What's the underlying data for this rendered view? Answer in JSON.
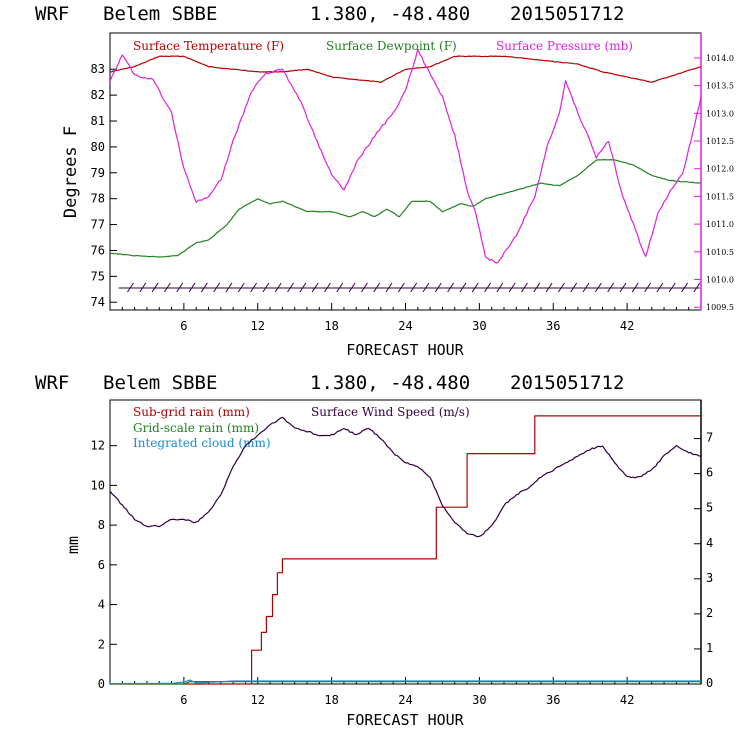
{
  "header": {
    "top": {
      "model": "WRF",
      "station": "Belem SBBE",
      "coords": "1.380, -48.480",
      "run": "2015051712"
    },
    "bottom": {
      "model": "WRF",
      "station": "Belem SBBE",
      "coords": "1.380, -48.480",
      "run": "2015051712"
    }
  },
  "colors": {
    "temperature": "#b30000",
    "dewpoint": "#208020",
    "pressure": "#e020e0",
    "subgrid": "#b30000",
    "gridscale": "#208020",
    "cloud": "#1a8ad0",
    "wind": "#300040",
    "pressure_axis": "#e020e0"
  },
  "chart_data": [
    {
      "type": "line",
      "xlabel": "FORECAST HOUR",
      "ylabel": "Degrees F",
      "xlim": [
        0,
        48
      ],
      "ylim": [
        73.7,
        84.4
      ],
      "y2lim": [
        1009.45,
        1014.45
      ],
      "grid": false,
      "legend_position": "top",
      "x_ticks": [
        "6",
        "12",
        "18",
        "24",
        "30",
        "36",
        "42"
      ],
      "y_ticks": [
        "74",
        "75",
        "76",
        "77",
        "78",
        "79",
        "80",
        "81",
        "82",
        "83"
      ],
      "y2_ticks": [
        "1009.5",
        "1010.0",
        "1010.5",
        "1011.0",
        "1011.5",
        "1012.0",
        "1012.5",
        "1013.0",
        "1013.5",
        "1014.0"
      ],
      "series": [
        {
          "name": "Surface Temperature (F)",
          "axis": "left",
          "points": [
            [
              0,
              82.9
            ],
            [
              2,
              83.1
            ],
            [
              4,
              83.5
            ],
            [
              6,
              83.5
            ],
            [
              8,
              83.1
            ],
            [
              10,
              83.0
            ],
            [
              12,
              82.9
            ],
            [
              14,
              82.9
            ],
            [
              16,
              83.0
            ],
            [
              18,
              82.7
            ],
            [
              20,
              82.6
            ],
            [
              22,
              82.5
            ],
            [
              24,
              83.0
            ],
            [
              26,
              83.1
            ],
            [
              28,
              83.5
            ],
            [
              30,
              83.5
            ],
            [
              32,
              83.5
            ],
            [
              34,
              83.4
            ],
            [
              36,
              83.3
            ],
            [
              38,
              83.2
            ],
            [
              40,
              82.9
            ],
            [
              42,
              82.7
            ],
            [
              44,
              82.5
            ],
            [
              46,
              82.8
            ],
            [
              48,
              83.1
            ]
          ]
        },
        {
          "name": "Surface Dewpoint (F)",
          "axis": "left",
          "points": [
            [
              0,
              75.9
            ],
            [
              2,
              75.8
            ],
            [
              4,
              75.75
            ],
            [
              5.5,
              75.8
            ],
            [
              7,
              76.3
            ],
            [
              8,
              76.4
            ],
            [
              9.5,
              77.0
            ],
            [
              10.5,
              77.6
            ],
            [
              12,
              78.0
            ],
            [
              13,
              77.8
            ],
            [
              14,
              77.9
            ],
            [
              16,
              77.5
            ],
            [
              18,
              77.5
            ],
            [
              19.5,
              77.3
            ],
            [
              20.5,
              77.5
            ],
            [
              21.5,
              77.3
            ],
            [
              22.5,
              77.6
            ],
            [
              23.5,
              77.3
            ],
            [
              24.5,
              77.9
            ],
            [
              26,
              77.9
            ],
            [
              27,
              77.5
            ],
            [
              28.5,
              77.8
            ],
            [
              29.5,
              77.7
            ],
            [
              30.5,
              78.0
            ],
            [
              32,
              78.2
            ],
            [
              33.5,
              78.4
            ],
            [
              35,
              78.6
            ],
            [
              36.5,
              78.5
            ],
            [
              38,
              78.9
            ],
            [
              39.5,
              79.5
            ],
            [
              41,
              79.5
            ],
            [
              42.5,
              79.3
            ],
            [
              44,
              78.9
            ],
            [
              45.5,
              78.7
            ],
            [
              48,
              78.6
            ]
          ]
        },
        {
          "name": "Surface Pressure (mb)",
          "axis": "right",
          "points": [
            [
              0,
              1013.6
            ],
            [
              1,
              1014.05
            ],
            [
              2,
              1013.7
            ],
            [
              3.5,
              1013.6
            ],
            [
              5,
              1013.0
            ],
            [
              6,
              1012.0
            ],
            [
              7,
              1011.4
            ],
            [
              8,
              1011.5
            ],
            [
              9,
              1011.8
            ],
            [
              10,
              1012.5
            ],
            [
              11.5,
              1013.4
            ],
            [
              12.5,
              1013.7
            ],
            [
              14,
              1013.8
            ],
            [
              15.5,
              1013.2
            ],
            [
              17,
              1012.4
            ],
            [
              18,
              1011.9
            ],
            [
              19,
              1011.6
            ],
            [
              20,
              1012.1
            ],
            [
              21.5,
              1012.6
            ],
            [
              23,
              1013.0
            ],
            [
              24,
              1013.4
            ],
            [
              25,
              1014.15
            ],
            [
              26,
              1013.7
            ],
            [
              27,
              1013.3
            ],
            [
              28,
              1012.6
            ],
            [
              29,
              1011.6
            ],
            [
              29.7,
              1011.2
            ],
            [
              30.5,
              1010.4
            ],
            [
              31.5,
              1010.3
            ],
            [
              33,
              1010.8
            ],
            [
              34.5,
              1011.5
            ],
            [
              35.5,
              1012.4
            ],
            [
              36.5,
              1013.0
            ],
            [
              37,
              1013.6
            ],
            [
              38,
              1013.0
            ],
            [
              38.8,
              1012.6
            ],
            [
              39.5,
              1012.2
            ],
            [
              40.5,
              1012.5
            ],
            [
              41.5,
              1011.6
            ],
            [
              42.5,
              1011.0
            ],
            [
              43.5,
              1010.4
            ],
            [
              44.5,
              1011.2
            ],
            [
              45.5,
              1011.6
            ],
            [
              46.5,
              1011.9
            ],
            [
              47.5,
              1012.8
            ],
            [
              48,
              1013.3
            ]
          ]
        }
      ]
    },
    {
      "type": "line",
      "xlabel": "FORECAST HOUR",
      "ylabel": "mm",
      "xlim": [
        0,
        48
      ],
      "ylim": [
        0,
        14.3
      ],
      "y2lim": [
        0,
        8.1
      ],
      "grid": false,
      "legend_position": "top",
      "x_ticks": [
        "6",
        "12",
        "18",
        "24",
        "30",
        "36",
        "42"
      ],
      "y_ticks": [
        "0",
        "2",
        "4",
        "6",
        "8",
        "10",
        "12"
      ],
      "y2_ticks": [
        "0",
        "1",
        "2",
        "3",
        "4",
        "5",
        "6",
        "7"
      ],
      "series": [
        {
          "name": "Sub-grid rain (mm)",
          "axis": "left",
          "step": true,
          "points": [
            [
              0,
              0
            ],
            [
              11.5,
              0
            ],
            [
              11.5,
              1.7
            ],
            [
              12.3,
              1.7
            ],
            [
              12.3,
              2.6
            ],
            [
              12.7,
              2.6
            ],
            [
              12.7,
              3.4
            ],
            [
              13.2,
              3.4
            ],
            [
              13.2,
              4.5
            ],
            [
              13.6,
              4.5
            ],
            [
              13.6,
              5.6
            ],
            [
              14.0,
              5.6
            ],
            [
              14.0,
              6.3
            ],
            [
              26.5,
              6.3
            ],
            [
              26.5,
              8.9
            ],
            [
              29.0,
              8.9
            ],
            [
              29.0,
              11.6
            ],
            [
              34.5,
              11.6
            ],
            [
              34.5,
              13.5
            ],
            [
              48,
              13.5
            ]
          ]
        },
        {
          "name": "Grid-scale rain (mm)",
          "axis": "left",
          "points": [
            [
              0,
              0
            ],
            [
              6,
              0
            ],
            [
              6.5,
              0.12
            ],
            [
              7,
              0.12
            ],
            [
              48,
              0.12
            ]
          ]
        },
        {
          "name": "Integrated cloud (mm)",
          "axis": "left",
          "points": [
            [
              0,
              0.02
            ],
            [
              5,
              0.03
            ],
            [
              6,
              0.1
            ],
            [
              6.5,
              0.2
            ],
            [
              7,
              0.05
            ],
            [
              10,
              0.15
            ],
            [
              48,
              0.15
            ]
          ]
        },
        {
          "name": "Surface Wind Speed (m/s)",
          "axis": "right",
          "points": [
            [
              0,
              5.5
            ],
            [
              1,
              5.1
            ],
            [
              2,
              4.7
            ],
            [
              3,
              4.5
            ],
            [
              4,
              4.5
            ],
            [
              5,
              4.7
            ],
            [
              6,
              4.7
            ],
            [
              7,
              4.6
            ],
            [
              8,
              4.9
            ],
            [
              9,
              5.4
            ],
            [
              10,
              6.2
            ],
            [
              11,
              6.8
            ],
            [
              12,
              7.1
            ],
            [
              13,
              7.4
            ],
            [
              14,
              7.6
            ],
            [
              15,
              7.3
            ],
            [
              16,
              7.2
            ],
            [
              17,
              7.1
            ],
            [
              18,
              7.1
            ],
            [
              19,
              7.3
            ],
            [
              20,
              7.1
            ],
            [
              21,
              7.3
            ],
            [
              22,
              7.0
            ],
            [
              23,
              6.6
            ],
            [
              24,
              6.3
            ],
            [
              25,
              6.2
            ],
            [
              26,
              5.9
            ],
            [
              27,
              5.1
            ],
            [
              28,
              4.6
            ],
            [
              29,
              4.3
            ],
            [
              30,
              4.2
            ],
            [
              31,
              4.5
            ],
            [
              32,
              5.1
            ],
            [
              33,
              5.4
            ],
            [
              34,
              5.6
            ],
            [
              35,
              5.9
            ],
            [
              36,
              6.1
            ],
            [
              37,
              6.3
            ],
            [
              38,
              6.5
            ],
            [
              39,
              6.7
            ],
            [
              40,
              6.8
            ],
            [
              41,
              6.3
            ],
            [
              42,
              5.9
            ],
            [
              43,
              5.9
            ],
            [
              44,
              6.1
            ],
            [
              45,
              6.5
            ],
            [
              46,
              6.8
            ],
            [
              47,
              6.6
            ],
            [
              48,
              6.5
            ]
          ]
        }
      ]
    }
  ]
}
